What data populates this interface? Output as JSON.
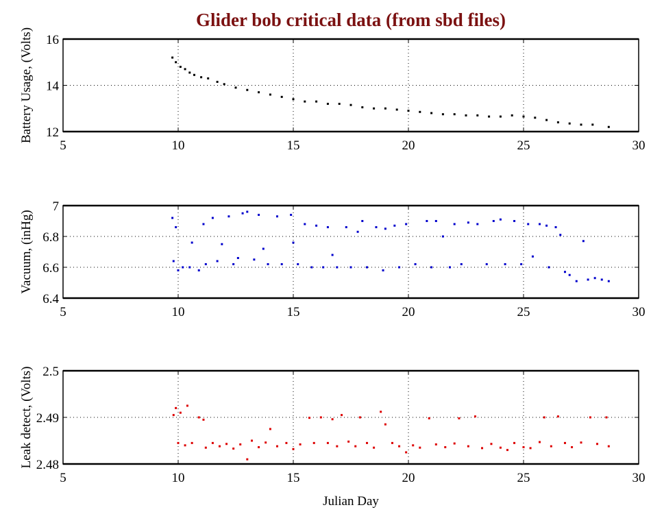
{
  "title": "Glider bob critical data (from sbd files)",
  "colors": {
    "title": "#7b1111"
  },
  "chart_data": [
    {
      "type": "scatter",
      "ylabel": "Battery Usage, (Volts)",
      "xlabel": "",
      "xlim": [
        5,
        30
      ],
      "ylim": [
        12,
        16
      ],
      "xticks": [
        "5",
        "10",
        "15",
        "20",
        "25",
        "30"
      ],
      "yticks": [
        "12",
        "14",
        "16"
      ],
      "grid": true,
      "color": "#000000",
      "x": [
        9.75,
        9.9,
        10.1,
        10.3,
        10.5,
        10.7,
        11,
        11.3,
        11.7,
        12,
        12.5,
        13,
        13.5,
        14,
        14.5,
        15,
        15.5,
        16,
        16.5,
        17,
        17.5,
        18,
        18.5,
        19,
        19.5,
        20,
        20.5,
        21,
        21.5,
        22,
        22.5,
        23,
        23.5,
        24,
        24.5,
        25,
        25.5,
        26,
        26.5,
        27,
        27.5,
        28,
        28.7
      ],
      "y": [
        15.2,
        15.0,
        14.8,
        14.7,
        14.55,
        14.45,
        14.35,
        14.3,
        14.15,
        14.05,
        13.9,
        13.8,
        13.7,
        13.6,
        13.5,
        13.4,
        13.3,
        13.3,
        13.2,
        13.2,
        13.15,
        13.05,
        13.0,
        13.0,
        12.95,
        12.9,
        12.85,
        12.8,
        12.75,
        12.75,
        12.7,
        12.7,
        12.65,
        12.65,
        12.7,
        12.65,
        12.6,
        12.5,
        12.4,
        12.35,
        12.3,
        12.3,
        12.2
      ]
    },
    {
      "type": "scatter",
      "ylabel": "Vacuum, (inHg)",
      "xlabel": "",
      "xlim": [
        5,
        30
      ],
      "ylim": [
        6.4,
        7
      ],
      "xticks": [
        "5",
        "10",
        "15",
        "20",
        "25",
        "30"
      ],
      "yticks": [
        "6.4",
        "6.6",
        "6.8",
        "7"
      ],
      "grid": true,
      "color": "#0000cc",
      "x": [
        9.75,
        9.8,
        9.9,
        10,
        10.2,
        10.5,
        10.6,
        10.9,
        11.1,
        11.2,
        11.5,
        11.7,
        11.9,
        12.2,
        12.4,
        12.6,
        12.8,
        13,
        13.3,
        13.5,
        13.7,
        13.9,
        14.3,
        14.5,
        14.9,
        15,
        15.2,
        15.5,
        15.8,
        16,
        16.3,
        16.5,
        16.7,
        16.9,
        17.3,
        17.5,
        17.8,
        18,
        18.2,
        18.6,
        18.9,
        19,
        19.4,
        19.6,
        19.9,
        20.3,
        20.8,
        21,
        21.2,
        21.5,
        21.8,
        22,
        22.3,
        22.6,
        23,
        23.4,
        23.7,
        24,
        24.2,
        24.6,
        24.9,
        25.2,
        25.4,
        25.7,
        26,
        26.1,
        26.4,
        26.6,
        26.8,
        27,
        27.3,
        27.6,
        27.8,
        28.1,
        28.4,
        28.7
      ],
      "y": [
        6.92,
        6.64,
        6.86,
        6.58,
        6.6,
        6.6,
        6.76,
        6.58,
        6.88,
        6.62,
        6.92,
        6.64,
        6.75,
        6.93,
        6.62,
        6.66,
        6.95,
        6.96,
        6.65,
        6.94,
        6.72,
        6.62,
        6.93,
        6.62,
        6.94,
        6.76,
        6.62,
        6.88,
        6.6,
        6.87,
        6.6,
        6.86,
        6.68,
        6.6,
        6.86,
        6.6,
        6.83,
        6.9,
        6.6,
        6.86,
        6.58,
        6.85,
        6.87,
        6.6,
        6.88,
        6.62,
        6.9,
        6.6,
        6.9,
        6.8,
        6.6,
        6.88,
        6.62,
        6.89,
        6.88,
        6.62,
        6.9,
        6.91,
        6.62,
        6.9,
        6.62,
        6.88,
        6.67,
        6.88,
        6.87,
        6.6,
        6.86,
        6.81,
        6.57,
        6.55,
        6.51,
        6.77,
        6.52,
        6.53,
        6.52,
        6.51
      ]
    },
    {
      "type": "scatter",
      "ylabel": "Leak detect, (Volts)",
      "xlabel": "Julian Day",
      "xlim": [
        5,
        30
      ],
      "ylim": [
        2.48,
        2.5
      ],
      "xticks": [
        "5",
        "10",
        "15",
        "20",
        "25",
        "30"
      ],
      "yticks": [
        "2.48",
        "2.49",
        "2.5"
      ],
      "grid": true,
      "color": "#dd0000",
      "x": [
        9.8,
        9.9,
        10,
        10.1,
        10.3,
        10.4,
        10.6,
        10.9,
        11.1,
        11.2,
        11.5,
        11.8,
        12.1,
        12.4,
        12.7,
        13,
        13.2,
        13.5,
        13.8,
        14,
        14.3,
        14.7,
        15,
        15.3,
        15.7,
        15.9,
        16.2,
        16.5,
        16.7,
        16.9,
        17.1,
        17.4,
        17.7,
        17.9,
        18.2,
        18.5,
        18.8,
        19,
        19.3,
        19.6,
        19.9,
        20.2,
        20.5,
        20.9,
        21.2,
        21.6,
        22,
        22.2,
        22.6,
        22.9,
        23.2,
        23.6,
        24,
        24.3,
        24.6,
        25,
        25.3,
        25.7,
        25.9,
        26.2,
        26.5,
        26.8,
        27.1,
        27.5,
        27.9,
        28.2,
        28.6,
        28.7
      ],
      "y": [
        2.4905,
        2.492,
        2.4845,
        2.491,
        2.484,
        2.4925,
        2.4845,
        2.49,
        2.4895,
        2.4835,
        2.4845,
        2.4838,
        2.4843,
        2.4833,
        2.4842,
        2.481,
        2.485,
        2.4836,
        2.4846,
        2.4875,
        2.4838,
        2.4845,
        2.4832,
        2.4842,
        2.4899,
        2.4845,
        2.49,
        2.4845,
        2.4896,
        2.4838,
        2.4905,
        2.4848,
        2.4838,
        2.49,
        2.4845,
        2.4835,
        2.4912,
        2.4885,
        2.4845,
        2.4838,
        2.4825,
        2.484,
        2.4835,
        2.4898,
        2.4842,
        2.4836,
        2.4844,
        2.4898,
        2.4838,
        2.4902,
        2.4834,
        2.4843,
        2.4835,
        2.483,
        2.4845,
        2.4836,
        2.4834,
        2.4847,
        2.49,
        2.4838,
        2.4902,
        2.4845,
        2.4836,
        2.4846,
        2.49,
        2.4843,
        2.49,
        2.4838
      ]
    }
  ]
}
